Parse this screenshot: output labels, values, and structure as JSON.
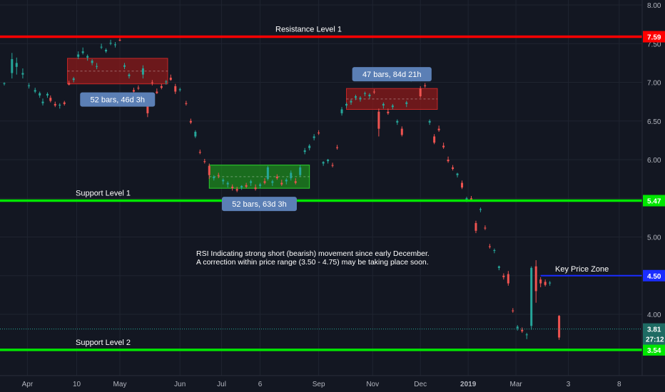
{
  "chart_data": {
    "type": "candlestick",
    "y_axis": {
      "ylim": [
        3.4,
        8.05
      ],
      "ticks": [
        "8.00",
        "7.50",
        "7.00",
        "6.50",
        "6.00",
        "5.50",
        "5.00",
        "4.50",
        "4.00"
      ]
    },
    "x_axis": {
      "ticks": [
        "Apr",
        "10",
        "May",
        "Jun",
        "Jul",
        "6",
        "Sep",
        "Nov",
        "Dec",
        "2019",
        "Mar",
        "3",
        "8"
      ],
      "tick_t": [
        1.5,
        4.7,
        7.5,
        11.4,
        14.1,
        16.6,
        20.4,
        23.9,
        27.0,
        30.1,
        33.2,
        36.6,
        39.9
      ]
    },
    "colors": {
      "up": "#26a69a",
      "down": "#ef5350",
      "resistance": "#ff0000",
      "support": "#00e600",
      "key_zone": "#1a2dff",
      "last_price": "#26a69a"
    },
    "horizontal_levels": [
      {
        "name": "Resistance Level 1",
        "price": 7.59,
        "tag": "7.59",
        "color": "#ff0000"
      },
      {
        "name": "Support Level 1",
        "price": 5.47,
        "tag": "5.47",
        "color": "#00e600"
      },
      {
        "name": "Support Level 2",
        "price": 3.54,
        "tag": "3.54",
        "color": "#00e600"
      }
    ],
    "key_price_zone": {
      "label": "Key Price Zone",
      "price": 4.5,
      "tag": "4.50",
      "t_start": 34.8
    },
    "last_price": {
      "tag": "3.81",
      "price": 3.81,
      "countdown": "27:12"
    },
    "ranges": [
      {
        "label": "52 bars, 46d 3h",
        "t0": 4.1,
        "t1": 10.6,
        "low": 6.98,
        "high": 7.31,
        "color": "#8b1a1a"
      },
      {
        "label": "52 bars, 63d 3h",
        "t0": 13.3,
        "t1": 19.8,
        "low": 5.63,
        "high": 5.93,
        "color": "#1d8a1d"
      },
      {
        "label": "47 bars, 84d 21h",
        "t0": 22.2,
        "t1": 28.1,
        "low": 6.65,
        "high": 6.92,
        "color": "#8b1a1a"
      }
    ],
    "annotation": {
      "line1": "RSI Indicating strong short (bearish) movement since early December.",
      "line2": "A correction within price range (3.50 - 4.75) may be taking place soon."
    },
    "candles": [
      {
        "t": 0.0,
        "o": 6.98,
        "h": 7.0,
        "l": 6.96,
        "c": 6.99
      },
      {
        "t": 0.5,
        "o": 7.12,
        "h": 7.38,
        "l": 7.05,
        "c": 7.3
      },
      {
        "t": 0.8,
        "o": 7.2,
        "h": 7.32,
        "l": 7.1,
        "c": 7.25
      },
      {
        "t": 1.2,
        "o": 7.1,
        "h": 7.18,
        "l": 7.05,
        "c": 7.12
      },
      {
        "t": 1.6,
        "o": 6.95,
        "h": 6.99,
        "l": 6.92,
        "c": 6.96
      },
      {
        "t": 2.0,
        "o": 6.88,
        "h": 6.93,
        "l": 6.86,
        "c": 6.9
      },
      {
        "t": 2.3,
        "o": 6.83,
        "h": 6.88,
        "l": 6.8,
        "c": 6.86
      },
      {
        "t": 2.5,
        "o": 6.73,
        "h": 6.79,
        "l": 6.7,
        "c": 6.75
      },
      {
        "t": 2.8,
        "o": 6.83,
        "h": 6.87,
        "l": 6.8,
        "c": 6.85
      },
      {
        "t": 3.0,
        "o": 6.8,
        "h": 6.83,
        "l": 6.74,
        "c": 6.76
      },
      {
        "t": 3.3,
        "o": 6.72,
        "h": 6.75,
        "l": 6.68,
        "c": 6.7
      },
      {
        "t": 3.6,
        "o": 6.7,
        "h": 6.73,
        "l": 6.66,
        "c": 6.71
      },
      {
        "t": 3.9,
        "o": 6.74,
        "h": 6.76,
        "l": 6.7,
        "c": 6.72
      },
      {
        "t": 4.2,
        "o": 6.99,
        "h": 7.02,
        "l": 6.96,
        "c": 6.97
      },
      {
        "t": 4.5,
        "o": 7.03,
        "h": 7.07,
        "l": 7.0,
        "c": 7.05
      },
      {
        "t": 4.8,
        "o": 7.33,
        "h": 7.4,
        "l": 7.3,
        "c": 7.36
      },
      {
        "t": 5.1,
        "o": 7.38,
        "h": 7.45,
        "l": 7.36,
        "c": 7.4
      },
      {
        "t": 5.4,
        "o": 7.32,
        "h": 7.36,
        "l": 7.28,
        "c": 7.34
      },
      {
        "t": 5.7,
        "o": 7.25,
        "h": 7.3,
        "l": 7.22,
        "c": 7.28
      },
      {
        "t": 6.0,
        "o": 7.2,
        "h": 7.25,
        "l": 7.17,
        "c": 7.21
      },
      {
        "t": 6.3,
        "o": 7.45,
        "h": 7.5,
        "l": 7.43,
        "c": 7.46
      },
      {
        "t": 6.6,
        "o": 7.4,
        "h": 7.44,
        "l": 7.38,
        "c": 7.42
      },
      {
        "t": 6.9,
        "o": 7.5,
        "h": 7.55,
        "l": 7.48,
        "c": 7.51
      },
      {
        "t": 7.2,
        "o": 7.48,
        "h": 7.52,
        "l": 7.45,
        "c": 7.49
      },
      {
        "t": 7.5,
        "o": 7.55,
        "h": 7.57,
        "l": 7.53,
        "c": 7.54
      },
      {
        "t": 7.8,
        "o": 7.2,
        "h": 7.25,
        "l": 7.17,
        "c": 7.22
      },
      {
        "t": 8.1,
        "o": 7.08,
        "h": 7.12,
        "l": 7.05,
        "c": 7.1
      },
      {
        "t": 8.4,
        "o": 6.9,
        "h": 6.93,
        "l": 6.86,
        "c": 6.88
      },
      {
        "t": 8.7,
        "o": 6.93,
        "h": 6.96,
        "l": 6.9,
        "c": 6.92
      },
      {
        "t": 9.0,
        "o": 7.1,
        "h": 7.22,
        "l": 7.05,
        "c": 7.18
      },
      {
        "t": 9.3,
        "o": 6.78,
        "h": 6.82,
        "l": 6.55,
        "c": 6.6
      },
      {
        "t": 9.6,
        "o": 7.0,
        "h": 7.03,
        "l": 6.96,
        "c": 6.99
      },
      {
        "t": 9.9,
        "o": 6.88,
        "h": 6.92,
        "l": 6.85,
        "c": 6.86
      },
      {
        "t": 10.2,
        "o": 6.95,
        "h": 6.98,
        "l": 6.91,
        "c": 6.93
      },
      {
        "t": 10.5,
        "o": 7.0,
        "h": 7.03,
        "l": 6.97,
        "c": 7.01
      },
      {
        "t": 10.8,
        "o": 7.06,
        "h": 7.1,
        "l": 7.02,
        "c": 7.03
      },
      {
        "t": 11.1,
        "o": 6.95,
        "h": 6.98,
        "l": 6.85,
        "c": 6.88
      },
      {
        "t": 11.4,
        "o": 6.9,
        "h": 6.93,
        "l": 6.88,
        "c": 6.91
      },
      {
        "t": 11.8,
        "o": 6.73,
        "h": 6.76,
        "l": 6.7,
        "c": 6.72
      },
      {
        "t": 12.1,
        "o": 6.5,
        "h": 6.53,
        "l": 6.46,
        "c": 6.48
      },
      {
        "t": 12.4,
        "o": 6.3,
        "h": 6.38,
        "l": 6.28,
        "c": 6.36
      },
      {
        "t": 12.7,
        "o": 6.1,
        "h": 6.13,
        "l": 6.07,
        "c": 6.09
      },
      {
        "t": 13.0,
        "o": 5.98,
        "h": 6.01,
        "l": 5.95,
        "c": 5.97
      },
      {
        "t": 13.3,
        "o": 5.92,
        "h": 5.95,
        "l": 5.75,
        "c": 5.8
      },
      {
        "t": 13.6,
        "o": 5.76,
        "h": 5.8,
        "l": 5.73,
        "c": 5.78
      },
      {
        "t": 13.9,
        "o": 5.8,
        "h": 5.83,
        "l": 5.76,
        "c": 5.79
      },
      {
        "t": 14.2,
        "o": 5.72,
        "h": 5.76,
        "l": 5.68,
        "c": 5.74
      },
      {
        "t": 14.5,
        "o": 5.68,
        "h": 5.72,
        "l": 5.64,
        "c": 5.7
      },
      {
        "t": 14.8,
        "o": 5.65,
        "h": 5.68,
        "l": 5.6,
        "c": 5.63
      },
      {
        "t": 15.1,
        "o": 5.62,
        "h": 5.65,
        "l": 5.58,
        "c": 5.6
      },
      {
        "t": 15.4,
        "o": 5.64,
        "h": 5.67,
        "l": 5.61,
        "c": 5.66
      },
      {
        "t": 15.7,
        "o": 5.67,
        "h": 5.7,
        "l": 5.63,
        "c": 5.65
      },
      {
        "t": 16.0,
        "o": 5.7,
        "h": 5.74,
        "l": 5.66,
        "c": 5.72
      },
      {
        "t": 16.3,
        "o": 5.64,
        "h": 5.68,
        "l": 5.6,
        "c": 5.62
      },
      {
        "t": 16.6,
        "o": 5.66,
        "h": 5.7,
        "l": 5.63,
        "c": 5.68
      },
      {
        "t": 16.9,
        "o": 5.72,
        "h": 5.76,
        "l": 5.68,
        "c": 5.7
      },
      {
        "t": 17.1,
        "o": 5.75,
        "h": 5.92,
        "l": 5.73,
        "c": 5.9
      },
      {
        "t": 17.4,
        "o": 5.7,
        "h": 5.74,
        "l": 5.66,
        "c": 5.72
      },
      {
        "t": 17.7,
        "o": 5.78,
        "h": 5.81,
        "l": 5.74,
        "c": 5.76
      },
      {
        "t": 18.0,
        "o": 5.7,
        "h": 5.74,
        "l": 5.66,
        "c": 5.68
      },
      {
        "t": 18.3,
        "o": 5.72,
        "h": 5.76,
        "l": 5.68,
        "c": 5.74
      },
      {
        "t": 18.6,
        "o": 5.76,
        "h": 5.86,
        "l": 5.73,
        "c": 5.83
      },
      {
        "t": 18.9,
        "o": 5.72,
        "h": 5.76,
        "l": 5.68,
        "c": 5.7
      },
      {
        "t": 19.2,
        "o": 5.8,
        "h": 5.93,
        "l": 5.78,
        "c": 5.9
      },
      {
        "t": 19.5,
        "o": 6.1,
        "h": 6.15,
        "l": 6.07,
        "c": 6.12
      },
      {
        "t": 19.8,
        "o": 6.15,
        "h": 6.2,
        "l": 6.12,
        "c": 6.18
      },
      {
        "t": 20.1,
        "o": 6.28,
        "h": 6.33,
        "l": 6.25,
        "c": 6.3
      },
      {
        "t": 20.4,
        "o": 6.35,
        "h": 6.38,
        "l": 6.32,
        "c": 6.34
      },
      {
        "t": 20.7,
        "o": 5.95,
        "h": 5.98,
        "l": 5.92,
        "c": 5.97
      },
      {
        "t": 21.0,
        "o": 5.98,
        "h": 6.01,
        "l": 5.95,
        "c": 6.0
      },
      {
        "t": 21.3,
        "o": 5.93,
        "h": 5.96,
        "l": 5.9,
        "c": 5.92
      },
      {
        "t": 21.6,
        "o": 6.16,
        "h": 6.19,
        "l": 6.13,
        "c": 6.15
      },
      {
        "t": 21.9,
        "o": 6.6,
        "h": 6.68,
        "l": 6.57,
        "c": 6.65
      },
      {
        "t": 22.2,
        "o": 6.7,
        "h": 6.74,
        "l": 6.67,
        "c": 6.72
      },
      {
        "t": 22.5,
        "o": 6.74,
        "h": 6.78,
        "l": 6.71,
        "c": 6.76
      },
      {
        "t": 22.8,
        "o": 6.8,
        "h": 6.84,
        "l": 6.77,
        "c": 6.82
      },
      {
        "t": 23.1,
        "o": 6.78,
        "h": 6.82,
        "l": 6.75,
        "c": 6.8
      },
      {
        "t": 23.4,
        "o": 6.85,
        "h": 6.88,
        "l": 6.82,
        "c": 6.86
      },
      {
        "t": 23.7,
        "o": 6.82,
        "h": 6.86,
        "l": 6.79,
        "c": 6.84
      },
      {
        "t": 24.0,
        "o": 6.88,
        "h": 6.91,
        "l": 6.85,
        "c": 6.87
      },
      {
        "t": 24.3,
        "o": 6.62,
        "h": 6.66,
        "l": 6.3,
        "c": 6.4
      },
      {
        "t": 24.6,
        "o": 6.7,
        "h": 6.74,
        "l": 6.66,
        "c": 6.72
      },
      {
        "t": 24.9,
        "o": 6.62,
        "h": 6.66,
        "l": 6.58,
        "c": 6.6
      },
      {
        "t": 25.2,
        "o": 6.68,
        "h": 6.72,
        "l": 6.65,
        "c": 6.7
      },
      {
        "t": 25.5,
        "o": 6.48,
        "h": 6.52,
        "l": 6.45,
        "c": 6.5
      },
      {
        "t": 25.8,
        "o": 6.4,
        "h": 6.43,
        "l": 6.3,
        "c": 6.32
      },
      {
        "t": 26.1,
        "o": 6.72,
        "h": 6.76,
        "l": 6.68,
        "c": 6.74
      },
      {
        "t": 26.4,
        "o": 7.05,
        "h": 7.1,
        "l": 7.01,
        "c": 7.07
      },
      {
        "t": 26.7,
        "o": 7.08,
        "h": 7.12,
        "l": 7.04,
        "c": 7.06
      },
      {
        "t": 27.0,
        "o": 6.92,
        "h": 6.95,
        "l": 6.8,
        "c": 6.82
      },
      {
        "t": 27.3,
        "o": 6.96,
        "h": 6.99,
        "l": 6.93,
        "c": 6.95
      },
      {
        "t": 27.6,
        "o": 6.48,
        "h": 6.52,
        "l": 6.45,
        "c": 6.5
      },
      {
        "t": 27.9,
        "o": 6.3,
        "h": 6.33,
        "l": 6.2,
        "c": 6.22
      },
      {
        "t": 28.2,
        "o": 6.4,
        "h": 6.44,
        "l": 6.36,
        "c": 6.38
      },
      {
        "t": 28.5,
        "o": 6.18,
        "h": 6.22,
        "l": 6.14,
        "c": 6.16
      },
      {
        "t": 28.8,
        "o": 6.0,
        "h": 6.04,
        "l": 5.96,
        "c": 5.98
      },
      {
        "t": 29.1,
        "o": 5.9,
        "h": 5.93,
        "l": 5.86,
        "c": 5.88
      },
      {
        "t": 29.4,
        "o": 5.8,
        "h": 5.83,
        "l": 5.77,
        "c": 5.82
      },
      {
        "t": 29.7,
        "o": 5.7,
        "h": 5.73,
        "l": 5.62,
        "c": 5.64
      },
      {
        "t": 30.0,
        "o": 5.48,
        "h": 5.52,
        "l": 5.45,
        "c": 5.5
      },
      {
        "t": 30.3,
        "o": 5.5,
        "h": 5.53,
        "l": 5.46,
        "c": 5.48
      },
      {
        "t": 30.6,
        "o": 5.18,
        "h": 5.21,
        "l": 5.05,
        "c": 5.08
      },
      {
        "t": 30.9,
        "o": 5.35,
        "h": 5.38,
        "l": 5.32,
        "c": 5.36
      },
      {
        "t": 31.2,
        "o": 5.12,
        "h": 5.15,
        "l": 5.09,
        "c": 5.11
      },
      {
        "t": 31.5,
        "o": 4.88,
        "h": 4.91,
        "l": 4.85,
        "c": 4.87
      },
      {
        "t": 31.8,
        "o": 4.82,
        "h": 4.85,
        "l": 4.79,
        "c": 4.83
      },
      {
        "t": 32.1,
        "o": 4.6,
        "h": 4.63,
        "l": 4.57,
        "c": 4.62
      },
      {
        "t": 32.4,
        "o": 4.5,
        "h": 4.53,
        "l": 4.45,
        "c": 4.48
      },
      {
        "t": 32.7,
        "o": 4.52,
        "h": 4.56,
        "l": 4.37,
        "c": 4.4
      },
      {
        "t": 33.0,
        "o": 4.05,
        "h": 4.08,
        "l": 4.02,
        "c": 4.04
      },
      {
        "t": 33.3,
        "o": 3.82,
        "h": 3.86,
        "l": 3.79,
        "c": 3.84
      },
      {
        "t": 33.6,
        "o": 3.8,
        "h": 3.83,
        "l": 3.76,
        "c": 3.78
      },
      {
        "t": 33.9,
        "o": 3.73,
        "h": 3.76,
        "l": 3.68,
        "c": 3.74
      },
      {
        "t": 34.2,
        "o": 3.85,
        "h": 4.62,
        "l": 3.8,
        "c": 4.6
      },
      {
        "t": 34.5,
        "o": 4.62,
        "h": 4.7,
        "l": 4.15,
        "c": 4.3
      },
      {
        "t": 34.8,
        "o": 4.45,
        "h": 4.48,
        "l": 4.35,
        "c": 4.4
      },
      {
        "t": 35.1,
        "o": 4.42,
        "h": 4.45,
        "l": 4.36,
        "c": 4.38
      },
      {
        "t": 35.4,
        "o": 4.4,
        "h": 4.43,
        "l": 4.37,
        "c": 4.41
      },
      {
        "t": 36.0,
        "o": 3.98,
        "h": 3.99,
        "l": 3.67,
        "c": 3.7
      }
    ]
  }
}
